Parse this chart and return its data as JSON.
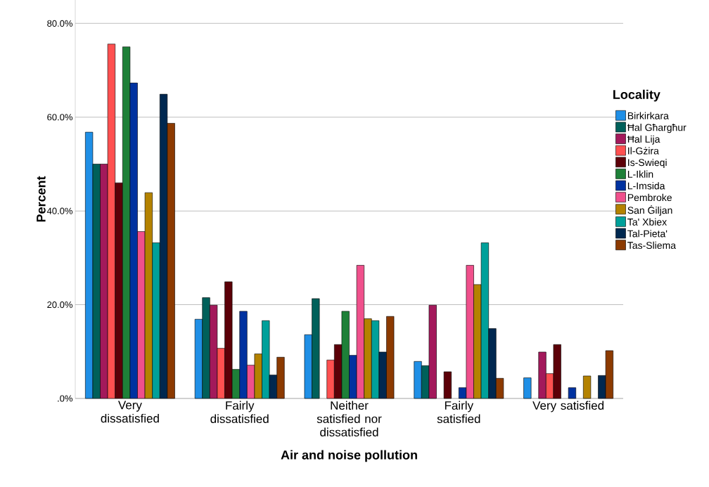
{
  "chart_data": {
    "type": "bar",
    "xlabel": "Air and noise pollution",
    "ylabel": "Percent",
    "legend_title": "Locality",
    "categories": [
      "Very dissatisfied",
      "Fairly dissatisfied",
      "Neither satisfied nor dissatisfied",
      "Fairly satisfied",
      "Very satisfied"
    ],
    "series": [
      {
        "name": "Birkirkara",
        "color": "#1f8fe6",
        "values": [
          56.8,
          16.9,
          13.6,
          7.9,
          4.4
        ]
      },
      {
        "name": "Ħal Għargħur",
        "color": "#00605a",
        "values": [
          50.0,
          21.5,
          21.3,
          7.0,
          null
        ]
      },
      {
        "name": "Ħal Lija",
        "color": "#a3195b",
        "values": [
          50.0,
          19.9,
          null,
          19.9,
          9.9
        ]
      },
      {
        "name": "Il-Gżira",
        "color": "#ff5050",
        "values": [
          75.6,
          10.7,
          8.2,
          null,
          5.3
        ]
      },
      {
        "name": "Is-Swieqi",
        "color": "#5c0008",
        "values": [
          46.0,
          24.9,
          11.5,
          5.7,
          11.5
        ]
      },
      {
        "name": "L-Iklin",
        "color": "#1e8038",
        "values": [
          75.0,
          6.2,
          18.6,
          null,
          null
        ]
      },
      {
        "name": "L-Imsida",
        "color": "#0032a0",
        "values": [
          67.3,
          18.6,
          9.2,
          2.3,
          2.3
        ]
      },
      {
        "name": "Pembroke",
        "color": "#f0508c",
        "values": [
          35.6,
          7.1,
          28.4,
          28.4,
          null
        ]
      },
      {
        "name": "San Ġiljan",
        "color": "#b48200",
        "values": [
          43.9,
          9.5,
          17.0,
          24.3,
          4.8
        ]
      },
      {
        "name": "Ta' Xbiex",
        "color": "#00a09a",
        "values": [
          33.2,
          16.6,
          16.6,
          33.2,
          null
        ]
      },
      {
        "name": "Tal-Pieta'",
        "color": "#002850",
        "values": [
          64.9,
          5.0,
          9.9,
          14.9,
          4.9
        ]
      },
      {
        "name": "Tas-Sliema",
        "color": "#8c3a00",
        "values": [
          58.7,
          8.8,
          17.5,
          4.3,
          10.2
        ]
      }
    ],
    "ylim": [
      0,
      85
    ],
    "yticks": [
      {
        "value": 0,
        "label": ".0%"
      },
      {
        "value": 20,
        "label": "20.0%"
      },
      {
        "value": 40,
        "label": "40.0%"
      },
      {
        "value": 60,
        "label": "60.0%"
      },
      {
        "value": 80,
        "label": "80.0%"
      }
    ],
    "grid": "y",
    "legend": "right"
  }
}
